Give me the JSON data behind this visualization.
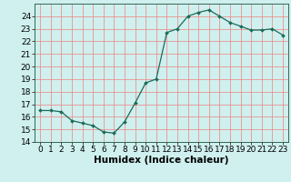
{
  "x": [
    0,
    1,
    2,
    3,
    4,
    5,
    6,
    7,
    8,
    9,
    10,
    11,
    12,
    13,
    14,
    15,
    16,
    17,
    18,
    19,
    20,
    21,
    22,
    23
  ],
  "y": [
    16.5,
    16.5,
    16.4,
    15.7,
    15.5,
    15.3,
    14.8,
    14.7,
    15.6,
    17.1,
    18.7,
    19.0,
    22.7,
    23.0,
    24.0,
    24.3,
    24.5,
    24.0,
    23.5,
    23.2,
    22.9,
    22.9,
    23.0,
    22.5
  ],
  "line_color": "#1a6b5a",
  "marker": "D",
  "marker_size": 2.0,
  "bg_color": "#cff0ee",
  "grid_color": "#f08080",
  "xlabel": "Humidex (Indice chaleur)",
  "ylim": [
    14,
    25
  ],
  "xlim": [
    -0.5,
    23.5
  ],
  "yticks": [
    14,
    15,
    16,
    17,
    18,
    19,
    20,
    21,
    22,
    23,
    24
  ],
  "xticks": [
    0,
    1,
    2,
    3,
    4,
    5,
    6,
    7,
    8,
    9,
    10,
    11,
    12,
    13,
    14,
    15,
    16,
    17,
    18,
    19,
    20,
    21,
    22,
    23
  ],
  "xlabel_fontsize": 7.5,
  "tick_fontsize": 6.5,
  "linewidth": 0.9
}
